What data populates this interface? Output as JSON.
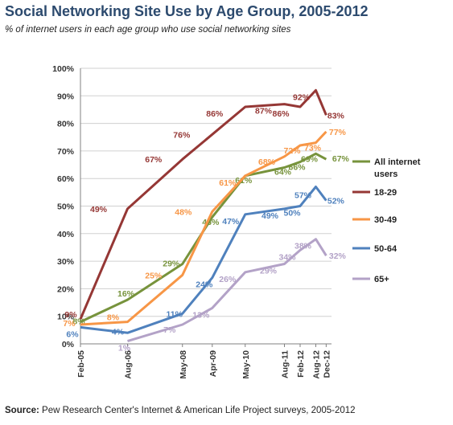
{
  "title": "Social Networking Site Use by Age Group, 2005-2012",
  "subtitle": "% of internet users in each age group who use social networking sites",
  "source": {
    "label": "Source:",
    "text": " Pew Research Center's Internet & American Life Project surveys, 2005-2012"
  },
  "chart_data": {
    "type": "line",
    "title": "Social Networking Site Use by Age Group, 2005-2012",
    "x": [
      "Feb-05",
      "Aug-06",
      "May-08",
      "Apr-09",
      "May-10",
      "Aug-11",
      "Feb-12",
      "Aug-12",
      "Dec-12"
    ],
    "x_positions": [
      0,
      1.5,
      3.25,
      4.2,
      5.25,
      6.5,
      7,
      7.5,
      7.83
    ],
    "yticks": [
      "0%",
      "10%",
      "20%",
      "30%",
      "40%",
      "50%",
      "60%",
      "70%",
      "80%",
      "90%",
      "100%"
    ],
    "ylim": [
      0,
      100
    ],
    "grid": true,
    "legend": "right",
    "series": [
      {
        "name": "All internet users",
        "color": "#77933c",
        "values": [
          8,
          16,
          29,
          46,
          61,
          64,
          66,
          69,
          67
        ],
        "labels": [
          "8%",
          "16%",
          "29%",
          "46%",
          "61%",
          "64%",
          "66%",
          "69%",
          "67%"
        ]
      },
      {
        "name": "18-29",
        "color": "#953735",
        "values": [
          9,
          49,
          67,
          76,
          86,
          87,
          86,
          92,
          83
        ],
        "labels": [
          "9%",
          "49%",
          "67%",
          "76%",
          "86%",
          "87%",
          "86%",
          "92%",
          "83%"
        ]
      },
      {
        "name": "30-49",
        "color": "#f79646",
        "values": [
          7,
          8,
          25,
          48,
          61,
          68,
          72,
          73,
          77
        ],
        "labels": [
          "7%",
          "8%",
          "25%",
          "48%",
          "61%",
          "68%",
          "72%",
          "73%",
          "77%"
        ]
      },
      {
        "name": "50-64",
        "color": "#4f81bd",
        "values": [
          6,
          4,
          11,
          24,
          47,
          49,
          50,
          57,
          52
        ],
        "labels": [
          "6%",
          "4%",
          "11%",
          "24%",
          "47%",
          "49%",
          "50%",
          "57%",
          "52%"
        ]
      },
      {
        "name": "65+",
        "color": "#b3a2c7",
        "values": [
          null,
          1,
          7,
          13,
          26,
          29,
          34,
          38,
          32
        ],
        "labels": [
          "",
          "1%",
          "7%",
          "13%",
          "26%",
          "29%",
          "34%",
          "38%",
          "32%"
        ]
      }
    ]
  },
  "legend_items": [
    {
      "line1": "All internet",
      "line2": "users",
      "color": "#77933c"
    },
    {
      "line1": "18-29",
      "line2": "",
      "color": "#953735"
    },
    {
      "line1": "30-49",
      "line2": "",
      "color": "#f79646"
    },
    {
      "line1": "50-64",
      "line2": "",
      "color": "#4f81bd"
    },
    {
      "line1": "65+",
      "line2": "",
      "color": "#b3a2c7"
    }
  ]
}
